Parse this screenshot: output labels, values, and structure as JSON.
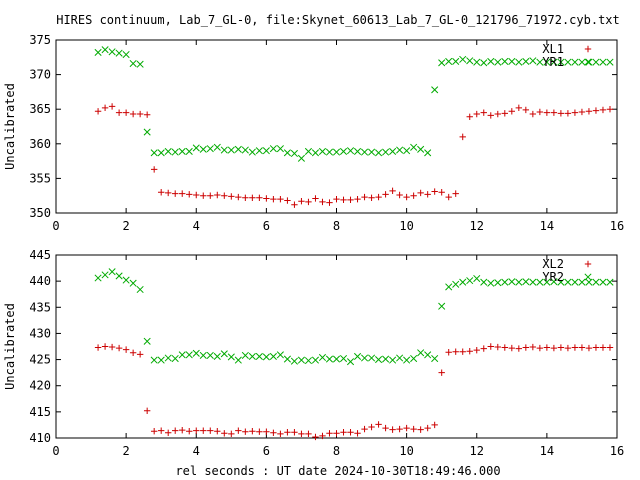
{
  "chart_data": {
    "title": "HIRES continuum, Lab_7_GL-0, file:Skynet_60613_Lab_7_GL-0_121796_71972.cyb.txt",
    "xlabel": "rel seconds : UT date 2024-10-30T18:49:46.000",
    "type": "scatter",
    "panels": [
      {
        "ylabel": "Uncalibrated",
        "xlim": [
          0,
          16
        ],
        "ylim": [
          350,
          375
        ],
        "xticks": [
          "0",
          "2",
          "4",
          "6",
          "8",
          "10",
          "12",
          "14",
          "16"
        ],
        "yticks": [
          "350",
          "355",
          "360",
          "365",
          "370",
          "375"
        ],
        "grid": false,
        "legend_position": "top-right",
        "series": [
          {
            "name": "XL1",
            "marker": "plus",
            "color": "#cc0000",
            "x": [
              1.2,
              1.4,
              1.6,
              1.8,
              2.0,
              2.2,
              2.4,
              2.6,
              2.8,
              3.0,
              3.2,
              3.4,
              3.6,
              3.8,
              4.0,
              4.2,
              4.4,
              4.6,
              4.8,
              5.0,
              5.2,
              5.4,
              5.6,
              5.8,
              6.0,
              6.2,
              6.4,
              6.6,
              6.8,
              7.0,
              7.2,
              7.4,
              7.6,
              7.8,
              8.0,
              8.2,
              8.4,
              8.6,
              8.8,
              9.0,
              9.2,
              9.4,
              9.6,
              9.8,
              10.0,
              10.2,
              10.4,
              10.6,
              10.8,
              11.0,
              11.2,
              11.4,
              11.6,
              11.8,
              12.0,
              12.2,
              12.4,
              12.6,
              12.8,
              13.0,
              13.2,
              13.4,
              13.6,
              13.8,
              14.0,
              14.2,
              14.4,
              14.6,
              14.8,
              15.0,
              15.2,
              15.4,
              15.6,
              15.8
            ],
            "y": [
              364.7,
              365.2,
              365.4,
              364.5,
              364.5,
              364.3,
              364.3,
              364.2,
              356.3,
              353.0,
              352.9,
              352.8,
              352.8,
              352.7,
              352.6,
              352.5,
              352.5,
              352.6,
              352.5,
              352.4,
              352.3,
              352.2,
              352.2,
              352.2,
              352.1,
              352.0,
              352.0,
              351.8,
              351.2,
              351.7,
              351.6,
              352.1,
              351.6,
              351.5,
              352.0,
              351.9,
              351.9,
              352.0,
              352.3,
              352.2,
              352.3,
              352.7,
              353.2,
              352.6,
              352.3,
              352.5,
              352.9,
              352.7,
              353.1,
              353.0,
              352.3,
              352.8,
              361.0,
              363.9,
              364.3,
              364.5,
              364.1,
              364.3,
              364.4,
              364.7,
              365.2,
              364.9,
              364.3,
              364.6,
              364.5,
              364.5,
              364.4,
              364.4,
              364.5,
              364.6,
              364.7,
              364.8,
              364.9,
              365.0
            ]
          },
          {
            "name": "YR1",
            "marker": "x",
            "color": "#00aa00",
            "x": [
              1.2,
              1.4,
              1.6,
              1.8,
              2.0,
              2.2,
              2.4,
              2.6,
              2.8,
              3.0,
              3.2,
              3.4,
              3.6,
              3.8,
              4.0,
              4.2,
              4.4,
              4.6,
              4.8,
              5.0,
              5.2,
              5.4,
              5.6,
              5.8,
              6.0,
              6.2,
              6.4,
              6.6,
              6.8,
              7.0,
              7.2,
              7.4,
              7.6,
              7.8,
              8.0,
              8.2,
              8.4,
              8.6,
              8.8,
              9.0,
              9.2,
              9.4,
              9.6,
              9.8,
              10.0,
              10.2,
              10.4,
              10.6,
              10.8,
              11.0,
              11.2,
              11.4,
              11.6,
              11.8,
              12.0,
              12.2,
              12.4,
              12.6,
              12.8,
              13.0,
              13.2,
              13.4,
              13.6,
              13.8,
              14.0,
              14.2,
              14.4,
              14.6,
              14.8,
              15.0,
              15.2,
              15.4,
              15.6,
              15.8
            ],
            "y": [
              373.2,
              373.6,
              373.3,
              373.1,
              372.9,
              371.6,
              371.5,
              361.7,
              358.7,
              358.7,
              358.9,
              358.8,
              358.9,
              358.9,
              359.4,
              359.2,
              359.3,
              359.5,
              359.1,
              359.1,
              359.2,
              359.1,
              358.8,
              359.0,
              359.0,
              359.3,
              359.3,
              358.7,
              358.6,
              357.9,
              358.9,
              358.7,
              358.9,
              358.8,
              358.8,
              358.9,
              359.0,
              358.9,
              358.8,
              358.8,
              358.7,
              358.8,
              358.9,
              359.1,
              359.0,
              359.5,
              359.2,
              358.7,
              367.8,
              371.7,
              371.9,
              371.9,
              372.2,
              372.0,
              371.8,
              371.7,
              371.9,
              371.8,
              371.9,
              371.9,
              371.8,
              371.9,
              372.0,
              371.8,
              371.8,
              371.8,
              371.8,
              371.8,
              371.8,
              371.8,
              371.8,
              371.8,
              371.8,
              371.8
            ]
          }
        ]
      },
      {
        "ylabel": "Uncalibrated",
        "xlim": [
          0,
          16
        ],
        "ylim": [
          410,
          445
        ],
        "xticks": [
          "0",
          "2",
          "4",
          "6",
          "8",
          "10",
          "12",
          "14",
          "16"
        ],
        "yticks": [
          "410",
          "415",
          "420",
          "425",
          "430",
          "435",
          "440",
          "445"
        ],
        "grid": false,
        "legend_position": "top-right",
        "series": [
          {
            "name": "XL2",
            "marker": "plus",
            "color": "#cc0000",
            "x": [
              1.2,
              1.4,
              1.6,
              1.8,
              2.0,
              2.2,
              2.4,
              2.6,
              2.8,
              3.0,
              3.2,
              3.4,
              3.6,
              3.8,
              4.0,
              4.2,
              4.4,
              4.6,
              4.8,
              5.0,
              5.2,
              5.4,
              5.6,
              5.8,
              6.0,
              6.2,
              6.4,
              6.6,
              6.8,
              7.0,
              7.2,
              7.4,
              7.6,
              7.8,
              8.0,
              8.2,
              8.4,
              8.6,
              8.8,
              9.0,
              9.2,
              9.4,
              9.6,
              9.8,
              10.0,
              10.2,
              10.4,
              10.6,
              10.8,
              11.0,
              11.2,
              11.4,
              11.6,
              11.8,
              12.0,
              12.2,
              12.4,
              12.6,
              12.8,
              13.0,
              13.2,
              13.4,
              13.6,
              13.8,
              14.0,
              14.2,
              14.4,
              14.6,
              14.8,
              15.0,
              15.2,
              15.4,
              15.6,
              15.8
            ],
            "y": [
              427.3,
              427.5,
              427.4,
              427.2,
              426.9,
              426.3,
              426.0,
              415.2,
              411.3,
              411.4,
              411.0,
              411.4,
              411.5,
              411.3,
              411.4,
              411.4,
              411.4,
              411.3,
              410.9,
              410.8,
              411.4,
              411.2,
              411.3,
              411.2,
              411.2,
              411.0,
              410.8,
              411.1,
              411.1,
              410.8,
              410.8,
              410.2,
              410.4,
              410.9,
              410.9,
              411.1,
              411.1,
              410.9,
              411.7,
              412.1,
              412.6,
              411.9,
              411.6,
              411.7,
              411.9,
              411.7,
              411.6,
              411.9,
              412.5,
              422.5,
              426.4,
              426.5,
              426.5,
              426.6,
              426.8,
              427.1,
              427.5,
              427.4,
              427.3,
              427.2,
              427.1,
              427.3,
              427.4,
              427.2,
              427.3,
              427.2,
              427.3,
              427.2,
              427.3,
              427.3,
              427.2,
              427.3,
              427.3,
              427.3
            ]
          },
          {
            "name": "YR2",
            "marker": "x",
            "color": "#00aa00",
            "x": [
              1.2,
              1.4,
              1.6,
              1.8,
              2.0,
              2.2,
              2.4,
              2.6,
              2.8,
              3.0,
              3.2,
              3.4,
              3.6,
              3.8,
              4.0,
              4.2,
              4.4,
              4.6,
              4.8,
              5.0,
              5.2,
              5.4,
              5.6,
              5.8,
              6.0,
              6.2,
              6.4,
              6.6,
              6.8,
              7.0,
              7.2,
              7.4,
              7.6,
              7.8,
              8.0,
              8.2,
              8.4,
              8.6,
              8.8,
              9.0,
              9.2,
              9.4,
              9.6,
              9.8,
              10.0,
              10.2,
              10.4,
              10.6,
              10.8,
              11.0,
              11.2,
              11.4,
              11.6,
              11.8,
              12.0,
              12.2,
              12.4,
              12.6,
              12.8,
              13.0,
              13.2,
              13.4,
              13.6,
              13.8,
              14.0,
              14.2,
              14.4,
              14.6,
              14.8,
              15.0,
              15.2,
              15.4,
              15.6,
              15.8
            ],
            "y": [
              440.6,
              441.2,
              441.8,
              441.0,
              440.2,
              439.6,
              438.4,
              428.5,
              424.9,
              424.9,
              425.3,
              425.2,
              425.9,
              425.9,
              426.2,
              425.8,
              425.8,
              425.6,
              426.1,
              425.5,
              424.9,
              425.8,
              425.6,
              425.6,
              425.5,
              425.6,
              425.9,
              425.1,
              424.7,
              424.9,
              424.8,
              424.9,
              425.4,
              425.1,
              425.1,
              425.2,
              424.6,
              425.6,
              425.3,
              425.3,
              425.0,
              425.1,
              424.9,
              425.3,
              424.9,
              425.2,
              426.3,
              425.9,
              425.2,
              435.2,
              438.9,
              439.4,
              439.8,
              440.1,
              440.5,
              439.8,
              439.6,
              439.7,
              439.8,
              439.9,
              439.8,
              439.9,
              439.8,
              439.8,
              439.8,
              439.9,
              439.8,
              439.8,
              439.8,
              439.8,
              439.8,
              439.8,
              439.8,
              439.8
            ]
          }
        ]
      }
    ]
  }
}
